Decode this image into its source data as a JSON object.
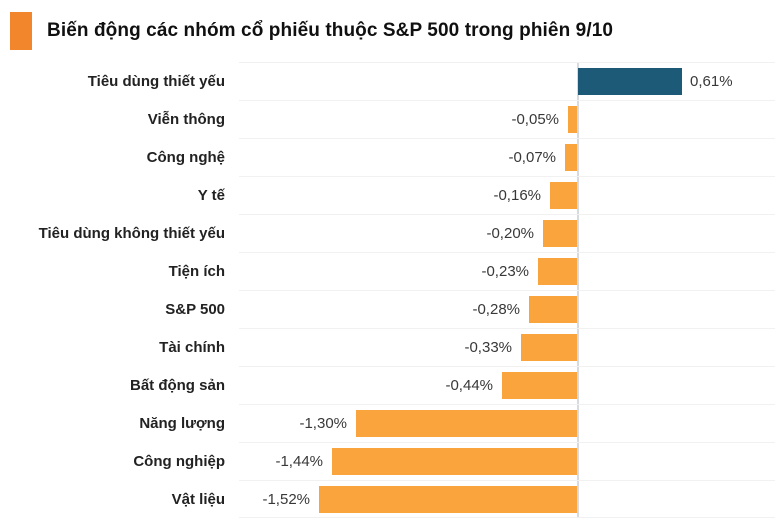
{
  "header": {
    "title": "Biến động các nhóm cổ phiếu thuộc S&P 500 trong phiên 9/10",
    "accent_color": "#f2862c"
  },
  "chart_data": {
    "type": "bar",
    "orientation": "horizontal",
    "title": "Biến động các nhóm cổ phiếu thuộc S&P 500 trong phiên 9/10",
    "unit": "%",
    "xlabel": "",
    "ylabel": "",
    "xlim": [
      -2.0,
      1.2
    ],
    "grid": "row-separators",
    "legend": "none",
    "zero_axis_line": true,
    "positive_color": "#1c5a78",
    "negative_color": "#f9a43c",
    "gridline_color": "#f1f1f1",
    "axis_line_color": "#d7dbe0",
    "categories": [
      "Tiêu dùng thiết yếu",
      "Viễn thông",
      "Công nghệ",
      "Y tế",
      "Tiêu dùng không thiết yếu",
      "Tiện ích",
      "S&P 500",
      "Tài chính",
      "Bất động sản",
      "Năng lượng",
      "Công nghiệp",
      "Vật liệu"
    ],
    "values": [
      0.61,
      -0.05,
      -0.07,
      -0.16,
      -0.2,
      -0.23,
      -0.28,
      -0.33,
      -0.44,
      -1.3,
      -1.44,
      -1.52
    ],
    "value_labels": [
      "0,61%",
      "-0,05%",
      "-0,07%",
      "-0,16%",
      "-0,20%",
      "-0,23%",
      "-0,28%",
      "-0,33%",
      "-0,44%",
      "-1,30%",
      "-1,44%",
      "-1,52%"
    ]
  }
}
